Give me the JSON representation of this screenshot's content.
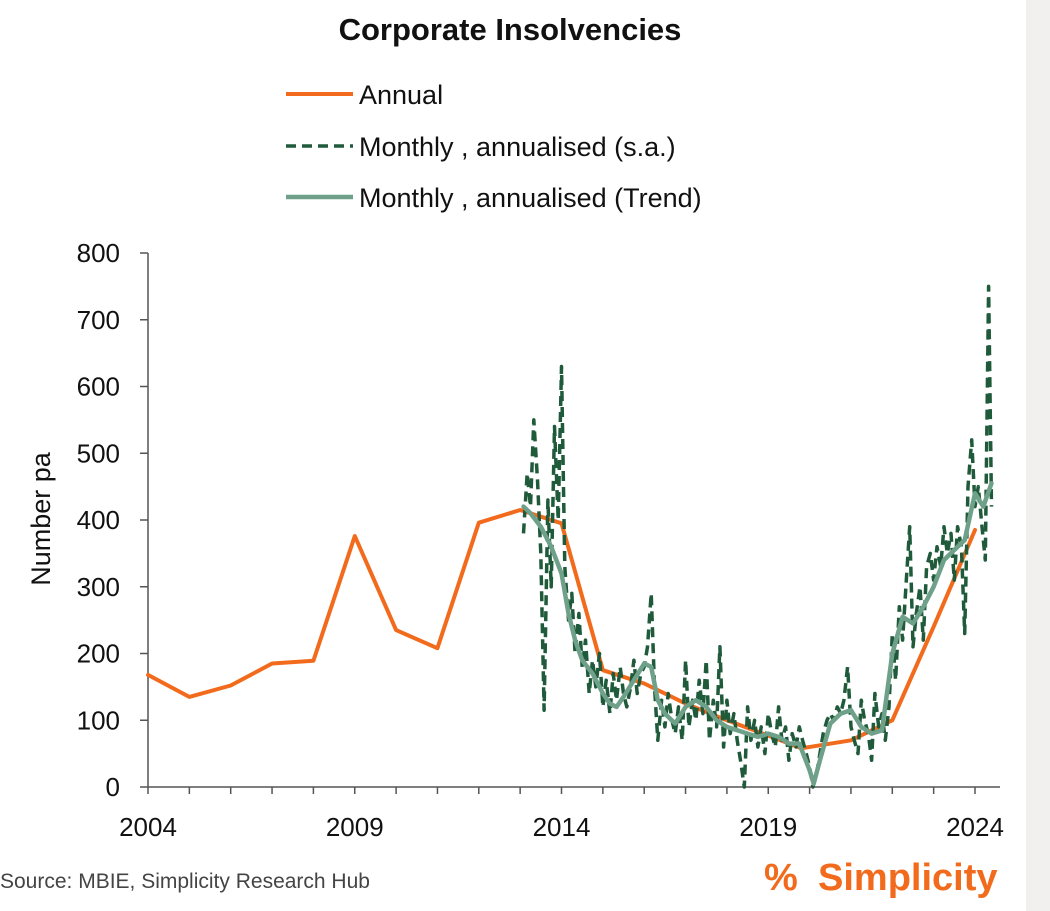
{
  "chart_data": {
    "type": "line",
    "title": "Corporate Insolvencies",
    "ylabel": "Number pa",
    "xlabel": "",
    "ylim": [
      0,
      800
    ],
    "xlim": [
      2004,
      2024.7
    ],
    "y_ticks": [
      "0",
      "100",
      "200",
      "300",
      "400",
      "500",
      "600",
      "700",
      "800"
    ],
    "x_ticks": [
      "2004",
      "2009",
      "2014",
      "2019",
      "2024"
    ],
    "legend_position": "top",
    "series": [
      {
        "name": "Annual",
        "style": "solid",
        "color": "#f26b1d",
        "points": [
          [
            2004,
            168
          ],
          [
            2005,
            135
          ],
          [
            2006,
            152
          ],
          [
            2007,
            185
          ],
          [
            2008,
            189
          ],
          [
            2009,
            376
          ],
          [
            2010,
            235
          ],
          [
            2011,
            208
          ],
          [
            2012,
            396
          ],
          [
            2013,
            415
          ],
          [
            2014,
            395
          ],
          [
            2015,
            175
          ],
          [
            2016,
            155
          ],
          [
            2017,
            125
          ],
          [
            2018,
            100
          ],
          [
            2019,
            77
          ],
          [
            2019.8,
            58
          ],
          [
            2021,
            70
          ],
          [
            2022,
            100
          ],
          [
            2023,
            240
          ],
          [
            2024,
            385
          ]
        ]
      },
      {
        "name": "Monthly , annualised (s.a.)",
        "style": "dashed",
        "color": "#1f5a3a",
        "points": [
          [
            2013.08,
            380
          ],
          [
            2013.17,
            470
          ],
          [
            2013.25,
            420
          ],
          [
            2013.33,
            550
          ],
          [
            2013.42,
            460
          ],
          [
            2013.5,
            350
          ],
          [
            2013.58,
            115
          ],
          [
            2013.67,
            430
          ],
          [
            2013.75,
            300
          ],
          [
            2013.83,
            540
          ],
          [
            2013.92,
            400
          ],
          [
            2014,
            630
          ],
          [
            2014.08,
            330
          ],
          [
            2014.17,
            250
          ],
          [
            2014.25,
            290
          ],
          [
            2014.33,
            200
          ],
          [
            2014.42,
            260
          ],
          [
            2014.5,
            180
          ],
          [
            2014.58,
            220
          ],
          [
            2014.67,
            140
          ],
          [
            2014.75,
            190
          ],
          [
            2014.83,
            150
          ],
          [
            2014.92,
            200
          ],
          [
            2015,
            120
          ],
          [
            2015.08,
            160
          ],
          [
            2015.17,
            110
          ],
          [
            2015.25,
            170
          ],
          [
            2015.33,
            130
          ],
          [
            2015.42,
            180
          ],
          [
            2015.5,
            140
          ],
          [
            2015.58,
            120
          ],
          [
            2015.67,
            150
          ],
          [
            2015.75,
            190
          ],
          [
            2015.83,
            140
          ],
          [
            2015.92,
            170
          ],
          [
            2016,
            180
          ],
          [
            2016.08,
            210
          ],
          [
            2016.17,
            290
          ],
          [
            2016.25,
            150
          ],
          [
            2016.33,
            70
          ],
          [
            2016.42,
            130
          ],
          [
            2016.5,
            90
          ],
          [
            2016.58,
            140
          ],
          [
            2016.67,
            100
          ],
          [
            2016.75,
            80
          ],
          [
            2016.83,
            120
          ],
          [
            2016.92,
            70
          ],
          [
            2017,
            190
          ],
          [
            2017.08,
            90
          ],
          [
            2017.17,
            130
          ],
          [
            2017.25,
            100
          ],
          [
            2017.33,
            160
          ],
          [
            2017.42,
            110
          ],
          [
            2017.5,
            190
          ],
          [
            2017.58,
            70
          ],
          [
            2017.67,
            130
          ],
          [
            2017.75,
            90
          ],
          [
            2017.83,
            210
          ],
          [
            2017.92,
            60
          ],
          [
            2018,
            130
          ],
          [
            2018.08,
            80
          ],
          [
            2018.17,
            110
          ],
          [
            2018.25,
            70
          ],
          [
            2018.33,
            40
          ],
          [
            2018.42,
            0
          ],
          [
            2018.5,
            120
          ],
          [
            2018.58,
            70
          ],
          [
            2018.67,
            100
          ],
          [
            2018.75,
            60
          ],
          [
            2018.83,
            90
          ],
          [
            2018.92,
            50
          ],
          [
            2019,
            110
          ],
          [
            2019.08,
            80
          ],
          [
            2019.17,
            60
          ],
          [
            2019.25,
            120
          ],
          [
            2019.33,
            70
          ],
          [
            2019.42,
            90
          ],
          [
            2019.5,
            40
          ],
          [
            2019.58,
            80
          ],
          [
            2019.67,
            60
          ],
          [
            2019.75,
            90
          ],
          [
            2019.83,
            70
          ],
          [
            2019.92,
            50
          ],
          [
            2020,
            30
          ],
          [
            2020.08,
            0
          ],
          [
            2020.17,
            20
          ],
          [
            2020.25,
            50
          ],
          [
            2020.33,
            80
          ],
          [
            2020.42,
            100
          ],
          [
            2020.5,
            110
          ],
          [
            2020.58,
            100
          ],
          [
            2020.67,
            120
          ],
          [
            2020.75,
            110
          ],
          [
            2020.83,
            130
          ],
          [
            2020.92,
            180
          ],
          [
            2021,
            90
          ],
          [
            2021.08,
            70
          ],
          [
            2021.17,
            50
          ],
          [
            2021.25,
            130
          ],
          [
            2021.33,
            100
          ],
          [
            2021.42,
            80
          ],
          [
            2021.5,
            40
          ],
          [
            2021.58,
            140
          ],
          [
            2021.67,
            90
          ],
          [
            2021.75,
            110
          ],
          [
            2021.83,
            70
          ],
          [
            2021.92,
            120
          ],
          [
            2022,
            230
          ],
          [
            2022.08,
            160
          ],
          [
            2022.17,
            270
          ],
          [
            2022.25,
            220
          ],
          [
            2022.33,
            300
          ],
          [
            2022.42,
            390
          ],
          [
            2022.5,
            210
          ],
          [
            2022.58,
            260
          ],
          [
            2022.67,
            300
          ],
          [
            2022.75,
            220
          ],
          [
            2022.83,
            330
          ],
          [
            2022.92,
            350
          ],
          [
            2023,
            310
          ],
          [
            2023.08,
            360
          ],
          [
            2023.17,
            330
          ],
          [
            2023.25,
            390
          ],
          [
            2023.33,
            350
          ],
          [
            2023.42,
            380
          ],
          [
            2023.5,
            310
          ],
          [
            2023.58,
            390
          ],
          [
            2023.67,
            360
          ],
          [
            2023.75,
            230
          ],
          [
            2023.83,
            450
          ],
          [
            2023.92,
            520
          ],
          [
            2024,
            420
          ],
          [
            2024.08,
            450
          ],
          [
            2024.17,
            390
          ],
          [
            2024.25,
            340
          ],
          [
            2024.33,
            750
          ],
          [
            2024.4,
            420
          ]
        ]
      },
      {
        "name": "Monthly , annualised (Trend)",
        "style": "solid",
        "color": "#6fa18a",
        "points": [
          [
            2013.08,
            420
          ],
          [
            2013.25,
            410
          ],
          [
            2013.5,
            390
          ],
          [
            2013.75,
            360
          ],
          [
            2014,
            320
          ],
          [
            2014.17,
            260
          ],
          [
            2014.33,
            220
          ],
          [
            2014.5,
            190
          ],
          [
            2014.75,
            170
          ],
          [
            2015,
            140
          ],
          [
            2015.17,
            125
          ],
          [
            2015.33,
            120
          ],
          [
            2015.5,
            135
          ],
          [
            2015.75,
            160
          ],
          [
            2016,
            185
          ],
          [
            2016.17,
            180
          ],
          [
            2016.33,
            130
          ],
          [
            2016.5,
            110
          ],
          [
            2016.75,
            95
          ],
          [
            2017,
            120
          ],
          [
            2017.25,
            130
          ],
          [
            2017.5,
            120
          ],
          [
            2017.75,
            100
          ],
          [
            2018,
            90
          ],
          [
            2018.25,
            85
          ],
          [
            2018.5,
            80
          ],
          [
            2018.75,
            75
          ],
          [
            2019,
            80
          ],
          [
            2019.25,
            75
          ],
          [
            2019.5,
            65
          ],
          [
            2019.75,
            65
          ],
          [
            2020,
            25
          ],
          [
            2020.1,
            5
          ],
          [
            2020.25,
            40
          ],
          [
            2020.5,
            95
          ],
          [
            2020.75,
            110
          ],
          [
            2021,
            115
          ],
          [
            2021.25,
            90
          ],
          [
            2021.5,
            80
          ],
          [
            2021.75,
            85
          ],
          [
            2022,
            200
          ],
          [
            2022.25,
            255
          ],
          [
            2022.5,
            245
          ],
          [
            2022.75,
            270
          ],
          [
            2023,
            300
          ],
          [
            2023.25,
            340
          ],
          [
            2023.5,
            355
          ],
          [
            2023.75,
            370
          ],
          [
            2024,
            440
          ],
          [
            2024.2,
            420
          ],
          [
            2024.4,
            455
          ]
        ]
      }
    ]
  },
  "source": "Source: MBIE, Simplicity Research Hub",
  "brand": {
    "symbol": "%",
    "name": "Simplicity",
    "color": "#f26b1d"
  }
}
